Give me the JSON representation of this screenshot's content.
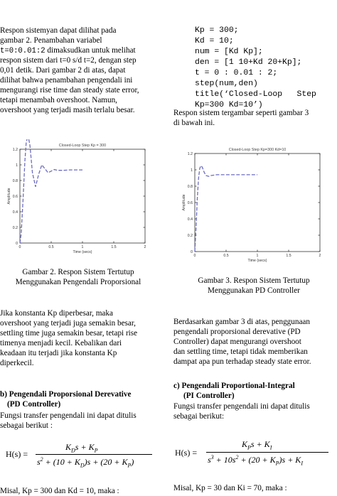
{
  "left": {
    "para1": {
      "line1": "Respon    sistemyan    dapat    dilihat    pada",
      "line2a": "gambar       2.       Penambahan       variabel",
      "line3_code": "t=0:0.01:2",
      "line3_rest": " dimaksudkan untuk melihat",
      "line4": "respon sistem dari t=0 s/d t=2, dengan step",
      "line5": "0,01  detik.  Dari  gambar  2  di  atas,  dapat",
      "line6": "dilihat  bahwa penambahan pengendali ini",
      "line7": "mengurangi rise time dan steady state error,",
      "line8": "tetapi    menambah    overshoot.    Namun,",
      "line9": "overshoot yang terjadi masih terlalu besar."
    },
    "caption": {
      "line1": "Gambar 2. Respon Sistem Tertutup",
      "line2": "Menggunakan Pengendali Proporsional"
    },
    "para2": {
      "line1": "Jika    konstanta    Kp    diperbesar,    maka",
      "line2": "overshoot yang terjadi juga semakin besar,",
      "line3": "settling time juga semakin besar, tetapi rise",
      "line4": "timenya    menjadi    kecil.    Kebalikan    dari",
      "line5": "keadaan   itu   terjadi   jika   konstanta   Kp",
      "line6": "diperkecil."
    },
    "heading": {
      "line1": "b) Pengendali Proporsional Derevative",
      "line2": "(PD Controller)"
    },
    "para3": {
      "line1": "Fungsi transfer pengendali ini dapat ditulis",
      "line2": "sebagai berikut :"
    },
    "equation": {
      "lhs": "H(s) =",
      "numerator": "K_D s + K_P",
      "denominator": "s² + (10 + K_D)s + (20 + K_P)"
    },
    "para4": "Misal, Kp = 300 dan Kd = 10, maka :"
  },
  "right": {
    "code": [
      "Kp = 300;",
      "Kd = 10;",
      "num = [Kd Kp];",
      "den = [1 10+Kd 20+Kp];",
      "t = 0 : 0.01 : 2;",
      "step(num,den)",
      "title(‘Closed-Loop   Step",
      "Kp=300 Kd=10’)"
    ],
    "para1": {
      "line1": "Respon sistem tergambar seperti gambar 3",
      "line2": "di bawah ini."
    },
    "caption": {
      "line1": "Gambar 3. Respon Sistem Tertutup",
      "line2": "Menggunakan PD Controller"
    },
    "para2": {
      "line1": "Berdasarkan gambar 3 di atas, penggunaan",
      "line2": "pengendali   proporsional   derevative   (PD",
      "line3": "Controller)   dapat   mengurangi   overshoot",
      "line4": "dan settling time, tetapi tidak memberikan",
      "line5": "dampat apa pun terhadap steady state error."
    },
    "heading": {
      "line1": "c) Pengendali Proportional-Integral",
      "line2": "(PI Controller)"
    },
    "para3": {
      "line1": "Fungsi transfer pengendali ini dapat ditulis",
      "line2": "sebagai berikut:"
    },
    "equation": {
      "lhs": "H(s) =",
      "numerator": "K_P s + K_I",
      "denominator": "s³ + 10s² + (20 + K_P)s + K_I"
    },
    "para4": "Misal, Kp = 30 dan Ki = 70, maka :"
  },
  "chart_data": [
    {
      "type": "line",
      "title": "Closed-Loop Step Kp = 300",
      "xlabel": "Time (secs)",
      "ylabel": "Amplitude",
      "xlim": [
        0,
        2
      ],
      "ylim": [
        0,
        1.2
      ],
      "x_ticks": [
        "0",
        "0.5",
        "1",
        "1.5",
        "2"
      ],
      "y_ticks": [
        "0",
        "0.2",
        "0.4",
        "0.6",
        "0.8",
        "1",
        "1.2"
      ],
      "series": [
        {
          "x": [
            0,
            0.02,
            0.05,
            0.08,
            0.1,
            0.13,
            0.16,
            0.2,
            0.25,
            0.3,
            0.35,
            0.4,
            0.45,
            0.5,
            0.55,
            0.6,
            0.7,
            0.8,
            0.9,
            1.0
          ],
          "y": [
            0,
            0.12,
            0.55,
            1.05,
            1.28,
            1.38,
            1.25,
            0.9,
            0.72,
            0.88,
            1.0,
            0.95,
            0.9,
            0.92,
            0.94,
            0.93,
            0.93,
            0.935,
            0.935,
            0.935
          ]
        }
      ]
    },
    {
      "type": "line",
      "title": "Closed-Loop Step Kp=300 Kd=10",
      "xlabel": "Time (secs)",
      "ylabel": "Amplitude",
      "xlim": [
        0,
        2
      ],
      "ylim": [
        0,
        1.2
      ],
      "x_ticks": [
        "0",
        "0.5",
        "1",
        "1.5",
        "2"
      ],
      "y_ticks": [
        "0",
        "0.2",
        "0.4",
        "0.6",
        "0.8",
        "1",
        "1.2"
      ],
      "series": [
        {
          "x": [
            0,
            0.02,
            0.04,
            0.06,
            0.08,
            0.1,
            0.12,
            0.15,
            0.18,
            0.22,
            0.26,
            0.3,
            0.35,
            0.4,
            0.5,
            0.6,
            0.7,
            0.8,
            0.9,
            1.0
          ],
          "y": [
            0,
            0.3,
            0.65,
            0.9,
            1.02,
            1.05,
            1.03,
            0.97,
            0.93,
            0.92,
            0.93,
            0.935,
            0.94,
            0.94,
            0.94,
            0.94,
            0.94,
            0.94,
            0.94,
            0.94
          ]
        }
      ]
    }
  ]
}
